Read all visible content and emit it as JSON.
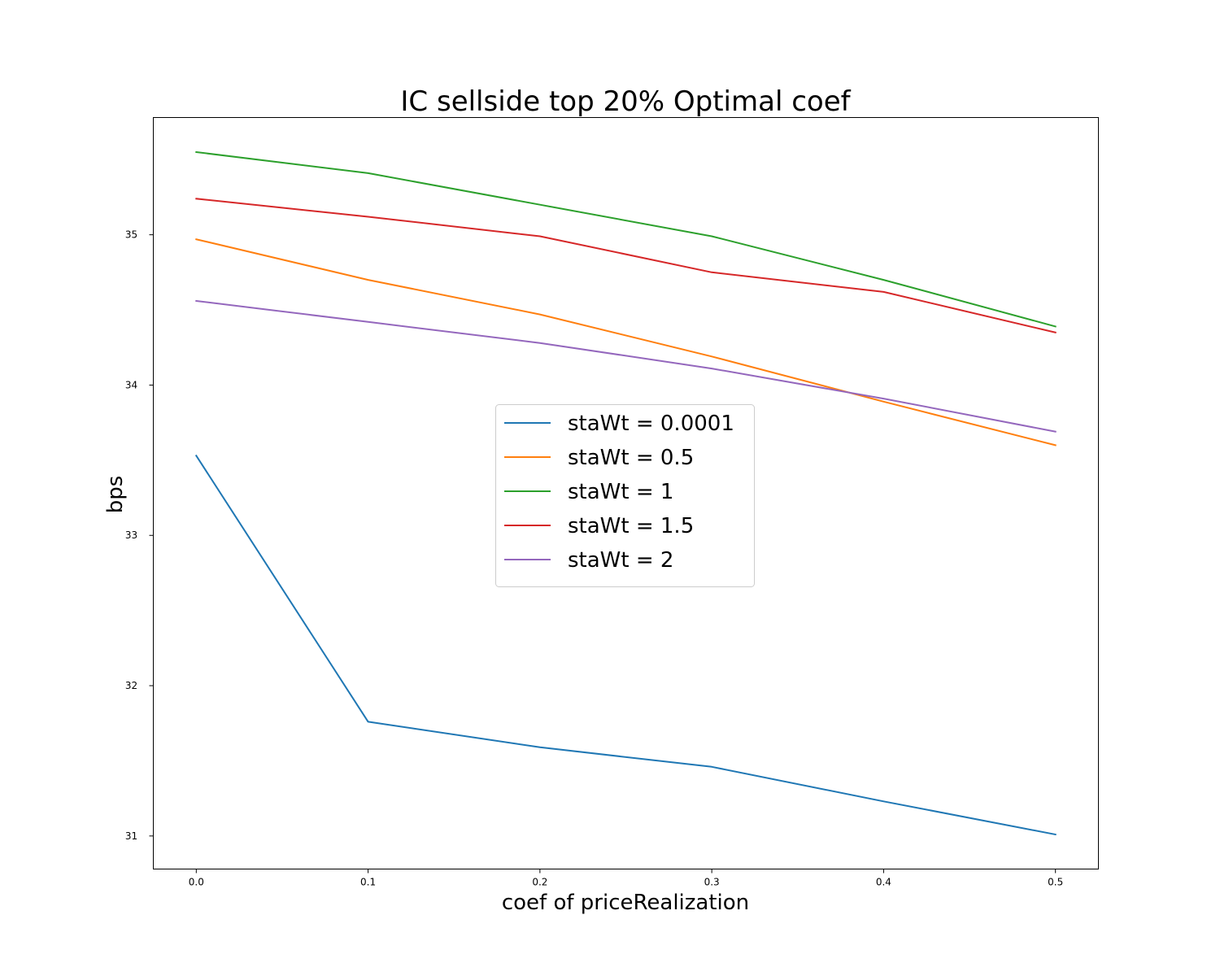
{
  "chart_data": {
    "type": "line",
    "title": "IC sellside top 20% Optimal coef",
    "xlabel": "coef of priceRealization",
    "ylabel": "bps",
    "x": [
      0.0,
      0.1,
      0.2,
      0.3,
      0.4,
      0.5
    ],
    "xlim": [
      -0.025,
      0.525
    ],
    "ylim": [
      30.78,
      35.78
    ],
    "xticks": [
      "0.0",
      "0.1",
      "0.2",
      "0.3",
      "0.4",
      "0.5"
    ],
    "yticks": [
      "31",
      "32",
      "33",
      "34",
      "35"
    ],
    "grid": false,
    "legend_position": "center",
    "series": [
      {
        "name": "staWt = 0.0001",
        "color": "#1f77b4",
        "values": [
          33.53,
          31.76,
          31.59,
          31.46,
          31.23,
          31.01
        ]
      },
      {
        "name": "staWt = 0.5",
        "color": "#ff7f0e",
        "values": [
          34.97,
          34.7,
          34.47,
          34.19,
          33.89,
          33.6
        ]
      },
      {
        "name": "staWt = 1",
        "color": "#2ca02c",
        "values": [
          35.55,
          35.41,
          35.2,
          34.99,
          34.7,
          34.39
        ]
      },
      {
        "name": "staWt = 1.5",
        "color": "#d62728",
        "values": [
          35.24,
          35.12,
          34.99,
          34.75,
          34.62,
          34.35
        ]
      },
      {
        "name": "staWt = 2",
        "color": "#9467bd",
        "values": [
          34.56,
          34.42,
          34.28,
          34.11,
          33.91,
          33.69
        ]
      }
    ]
  }
}
